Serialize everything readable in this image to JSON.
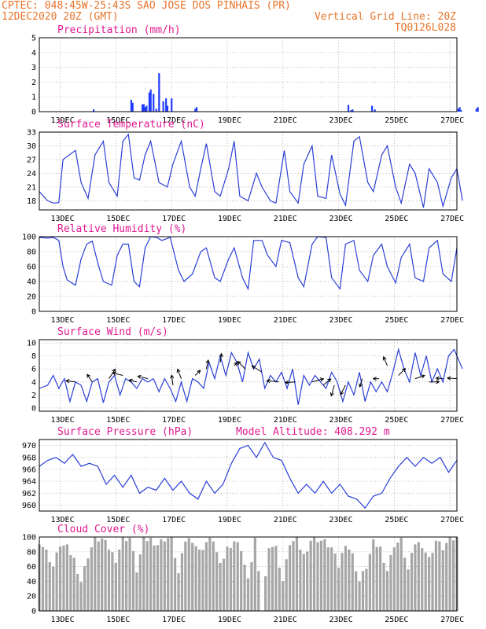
{
  "header": {
    "left_line1": "CPTEC:   048:45W-25:43S  SAO JOSE DOS PINHAIS (PR)",
    "left_line2": "12DEC2020 20Z (GMT)",
    "right_line2": "Vertical Grid Line: 20Z",
    "right_line3": "TQ0126L028"
  },
  "x_ticks": [
    "13DEC",
    "15DEC",
    "17DEC",
    "19DEC",
    "21DEC",
    "23DEC",
    "25DEC",
    "27DEC"
  ],
  "colors": {
    "header": "#e8742a",
    "panel_title": "#e0198f",
    "series": "#2b3fd6",
    "precip_bar": "#1f3bff",
    "cloud": "#a6a6a6"
  },
  "chart_data": [
    {
      "type": "bar",
      "title": "Precipitation (mm/h)",
      "x_unit": "days from 12DEC2020 20Z",
      "ylim": [
        0,
        5
      ],
      "yticks": [
        0,
        1,
        2,
        3,
        4,
        5
      ],
      "grid": true,
      "x": [
        1.95,
        3.3,
        3.35,
        3.7,
        3.75,
        3.8,
        3.85,
        3.95,
        4.0,
        4.1,
        4.2,
        4.3,
        4.45,
        4.55,
        4.6,
        4.75,
        5.6,
        5.65,
        11.1,
        11.2,
        11.25,
        11.95,
        12.05,
        15.05,
        15.1,
        15.15,
        15.7,
        15.75
      ],
      "values": [
        0.15,
        0.8,
        0.6,
        0.5,
        0.5,
        0.3,
        0.4,
        1.3,
        1.5,
        1.2,
        0.2,
        2.6,
        0.7,
        0.9,
        0.4,
        0.9,
        0.2,
        0.3,
        0.45,
        0.1,
        0.15,
        0.4,
        0.15,
        0.2,
        0.3,
        0.1,
        0.2,
        0.3
      ]
    },
    {
      "type": "line",
      "title": "Surface Temperature (nC)",
      "ylim": [
        16,
        33
      ],
      "yticks": [
        18,
        21,
        24,
        27,
        30,
        33
      ],
      "grid": true,
      "x": [
        0,
        0.3,
        0.5,
        0.7,
        0.85,
        1.3,
        1.5,
        1.75,
        2.0,
        2.3,
        2.5,
        2.8,
        3.0,
        3.2,
        3.4,
        3.6,
        3.8,
        4.0,
        4.3,
        4.6,
        4.8,
        5.1,
        5.4,
        5.6,
        5.8,
        6.0,
        6.3,
        6.5,
        6.8,
        7.0,
        7.2,
        7.5,
        7.8,
        8.0,
        8.3,
        8.5,
        8.8,
        9.0,
        9.3,
        9.5,
        9.8,
        10.0,
        10.3,
        10.5,
        10.8,
        11.0,
        11.3,
        11.5,
        11.8,
        12.0,
        12.3,
        12.5,
        12.8,
        13.0,
        13.3,
        13.5,
        13.8,
        14.0,
        14.3,
        14.5,
        14.8,
        15.0,
        15.2
      ],
      "values": [
        20,
        18,
        17.5,
        17.6,
        27,
        29,
        22,
        18.5,
        28,
        31,
        22,
        19,
        31,
        32.5,
        23,
        22.5,
        28,
        31,
        22,
        21,
        26,
        31,
        21,
        19,
        25,
        30.5,
        20,
        19,
        25,
        31,
        19,
        18,
        24,
        21,
        18,
        17.5,
        29,
        20,
        17.5,
        26,
        30,
        19,
        18.5,
        28,
        19.5,
        17,
        31,
        32,
        22,
        20,
        28,
        30,
        21,
        17.5,
        26,
        24,
        16.5,
        25,
        22,
        16.8,
        23,
        25,
        18
      ]
    },
    {
      "type": "line",
      "title": "Relative Humidity (%)",
      "ylim": [
        0,
        100
      ],
      "yticks": [
        0,
        20,
        40,
        60,
        80,
        100
      ],
      "grid": true,
      "x": [
        0,
        0.3,
        0.5,
        0.7,
        0.85,
        1.0,
        1.3,
        1.5,
        1.7,
        1.9,
        2.1,
        2.3,
        2.6,
        2.8,
        3.0,
        3.2,
        3.4,
        3.6,
        3.8,
        4.0,
        4.2,
        4.4,
        4.7,
        5.0,
        5.2,
        5.5,
        5.8,
        6.0,
        6.3,
        6.5,
        6.8,
        7.0,
        7.3,
        7.5,
        7.7,
        8.0,
        8.2,
        8.5,
        8.7,
        9.0,
        9.3,
        9.5,
        9.8,
        10.0,
        10.3,
        10.5,
        10.8,
        11.0,
        11.3,
        11.5,
        11.8,
        12.0,
        12.3,
        12.5,
        12.8,
        13.0,
        13.3,
        13.5,
        13.8,
        14.0,
        14.3,
        14.5,
        14.8,
        15.0
      ],
      "values": [
        99,
        98,
        99,
        95,
        60,
        42,
        35,
        70,
        90,
        94,
        65,
        40,
        35,
        75,
        90,
        90,
        40,
        33,
        85,
        100,
        99,
        95,
        99,
        55,
        40,
        50,
        80,
        85,
        45,
        40,
        70,
        85,
        45,
        30,
        95,
        95,
        75,
        60,
        95,
        92,
        45,
        33,
        90,
        100,
        99,
        45,
        30,
        90,
        95,
        55,
        40,
        75,
        90,
        60,
        38,
        72,
        90,
        45,
        40,
        85,
        95,
        50,
        40,
        85
      ]
    },
    {
      "type": "line",
      "title": "Surface Wind (m/s)",
      "ylim": [
        -0.5,
        10.5
      ],
      "yticks": [
        0,
        2,
        4,
        6,
        8,
        10
      ],
      "grid": true,
      "x": [
        0,
        0.3,
        0.5,
        0.7,
        0.9,
        1.1,
        1.3,
        1.5,
        1.7,
        1.9,
        2.1,
        2.3,
        2.5,
        2.7,
        2.9,
        3.1,
        3.3,
        3.5,
        3.7,
        3.9,
        4.1,
        4.3,
        4.5,
        4.7,
        4.9,
        5.1,
        5.3,
        5.5,
        5.7,
        5.9,
        6.1,
        6.3,
        6.5,
        6.7,
        6.9,
        7.1,
        7.3,
        7.5,
        7.7,
        7.9,
        8.1,
        8.3,
        8.5,
        8.7,
        8.9,
        9.1,
        9.3,
        9.5,
        9.7,
        9.9,
        10.1,
        10.3,
        10.5,
        10.7,
        10.9,
        11.1,
        11.3,
        11.5,
        11.7,
        11.9,
        12.1,
        12.3,
        12.5,
        12.7,
        12.9,
        13.1,
        13.3,
        13.5,
        13.7,
        13.9,
        14.1,
        14.3,
        14.5,
        14.7,
        14.9,
        15.2
      ],
      "values": [
        3,
        3.5,
        5,
        3,
        4.5,
        1,
        4,
        3.5,
        1,
        4,
        4.5,
        0.8,
        4,
        5,
        2,
        4.5,
        4,
        3,
        4.5,
        4,
        4.5,
        2.5,
        4.5,
        3,
        1,
        4,
        1,
        4.5,
        4,
        3,
        7,
        4.5,
        8,
        5,
        8.5,
        7,
        4,
        8.5,
        6,
        7.5,
        3,
        5,
        4,
        5.5,
        3,
        6,
        0.5,
        5,
        3.5,
        5,
        4,
        3,
        5.5,
        4,
        1,
        4,
        2,
        5.5,
        1,
        4,
        2.5,
        4,
        2.5,
        5.5,
        9,
        6,
        4,
        8.5,
        5,
        8,
        4,
        6,
        4,
        8,
        9,
        6
      ]
    },
    {
      "type": "line",
      "title": "Surface Pressure (hPa)",
      "annotation": "Model Altitude: 408.292 m",
      "ylim": [
        959,
        971
      ],
      "yticks": [
        960,
        962,
        964,
        966,
        968,
        970
      ],
      "grid": true,
      "x": [
        0,
        0.3,
        0.6,
        0.9,
        1.2,
        1.5,
        1.8,
        2.1,
        2.4,
        2.7,
        3.0,
        3.3,
        3.6,
        3.9,
        4.2,
        4.5,
        4.8,
        5.1,
        5.4,
        5.7,
        6.0,
        6.3,
        6.6,
        6.9,
        7.2,
        7.5,
        7.8,
        8.1,
        8.4,
        8.7,
        9.0,
        9.3,
        9.6,
        9.9,
        10.2,
        10.5,
        10.8,
        11.1,
        11.4,
        11.7,
        12.0,
        12.3,
        12.6,
        12.9,
        13.2,
        13.5,
        13.8,
        14.1,
        14.4,
        14.7,
        15.0
      ],
      "values": [
        966.5,
        967.5,
        968,
        967,
        968.5,
        966.5,
        967,
        966.5,
        963.5,
        965,
        963,
        965,
        962,
        963,
        962.5,
        964.5,
        962.5,
        964,
        962,
        961,
        964,
        962,
        963.5,
        967,
        969.5,
        970,
        968,
        970.5,
        968,
        967.5,
        964.5,
        962,
        963.5,
        962,
        964,
        962,
        963.5,
        961.5,
        961,
        959.5,
        961.5,
        962,
        964.5,
        966.5,
        968,
        966.5,
        968,
        967,
        968,
        965.5,
        967.5
      ]
    },
    {
      "type": "bar",
      "title": "Cloud Cover (%)",
      "ylim": [
        0,
        100
      ],
      "yticks": [
        0,
        20,
        40,
        60,
        80,
        100
      ],
      "grid": true,
      "x": [
        0,
        0.25,
        0.5,
        0.75,
        1.0,
        1.25,
        1.5,
        1.75,
        2.0,
        2.25,
        2.5,
        2.75,
        3.0,
        3.25,
        3.5,
        3.75,
        4.0,
        4.25,
        4.5,
        4.75,
        5.0,
        5.25,
        5.5,
        5.75,
        6.0,
        6.25,
        6.5,
        6.75,
        7.0,
        7.25,
        7.5,
        7.75,
        8.0,
        8.25,
        8.5,
        8.75,
        9.0,
        9.25,
        9.5,
        9.75,
        10.0,
        10.25,
        10.5,
        10.75,
        11.0,
        11.25,
        11.5,
        11.75,
        12.0,
        12.25,
        12.5,
        12.75,
        13.0,
        13.25,
        13.5,
        13.75,
        14.0,
        14.25,
        14.5,
        14.75,
        15.0
      ],
      "values": [
        95,
        80,
        60,
        90,
        85,
        70,
        40,
        75,
        97,
        97,
        85,
        70,
        98,
        99,
        55,
        96,
        97,
        90,
        98,
        99,
        50,
        96,
        97,
        80,
        93,
        97,
        60,
        85,
        95,
        85,
        40,
        98,
        0,
        90,
        85,
        40,
        92,
        95,
        75,
        96,
        97,
        93,
        85,
        60,
        93,
        75,
        40,
        60,
        92,
        85,
        55,
        90,
        95,
        55,
        92,
        90,
        70,
        95,
        85,
        97,
        98
      ]
    }
  ],
  "wind_vectors": {
    "x": [
      1.3,
      1.9,
      2.5,
      3.0,
      3.5,
      3.9,
      4.8,
      5.1,
      5.6,
      6.0,
      6.5,
      7.0,
      7.4,
      8.0,
      8.6,
      9.2,
      9.8,
      10.2,
      10.6,
      11.0,
      11.6,
      12.2,
      12.5,
      12.9,
      13.5,
      14.0,
      14.5,
      15.0
    ],
    "y": [
      4,
      4,
      4.5,
      5,
      4,
      4.5,
      3.5,
      4.5,
      5,
      6,
      7,
      6.5,
      6,
      5.5,
      4,
      4,
      4,
      3.5,
      3.5,
      3.5,
      4.5,
      4.5,
      6.5,
      5,
      4.5,
      4,
      4.5,
      4.5
    ],
    "u": [
      -1.5,
      -0.8,
      1.0,
      -1.6,
      -1.2,
      -1.6,
      -0.2,
      -0.6,
      0.8,
      0.3,
      0.2,
      0.5,
      -1.2,
      -1.6,
      -1.9,
      -1.6,
      1.8,
      1.2,
      -0.5,
      -0.8,
      -0.4,
      -0.9,
      -0.6,
      1.1,
      1.5,
      1.6,
      -1.1,
      -1.5
    ],
    "v": [
      0.2,
      1.2,
      1.5,
      0.4,
      0.3,
      0.4,
      1.6,
      1.5,
      0.8,
      1.4,
      1.4,
      0.5,
      1.2,
      1.0,
      0.2,
      -0.1,
      0.5,
      1.0,
      -1.7,
      -1.5,
      -1.3,
      0.0,
      1.4,
      1.1,
      0.5,
      0.0,
      0.1,
      0.1
    ]
  }
}
